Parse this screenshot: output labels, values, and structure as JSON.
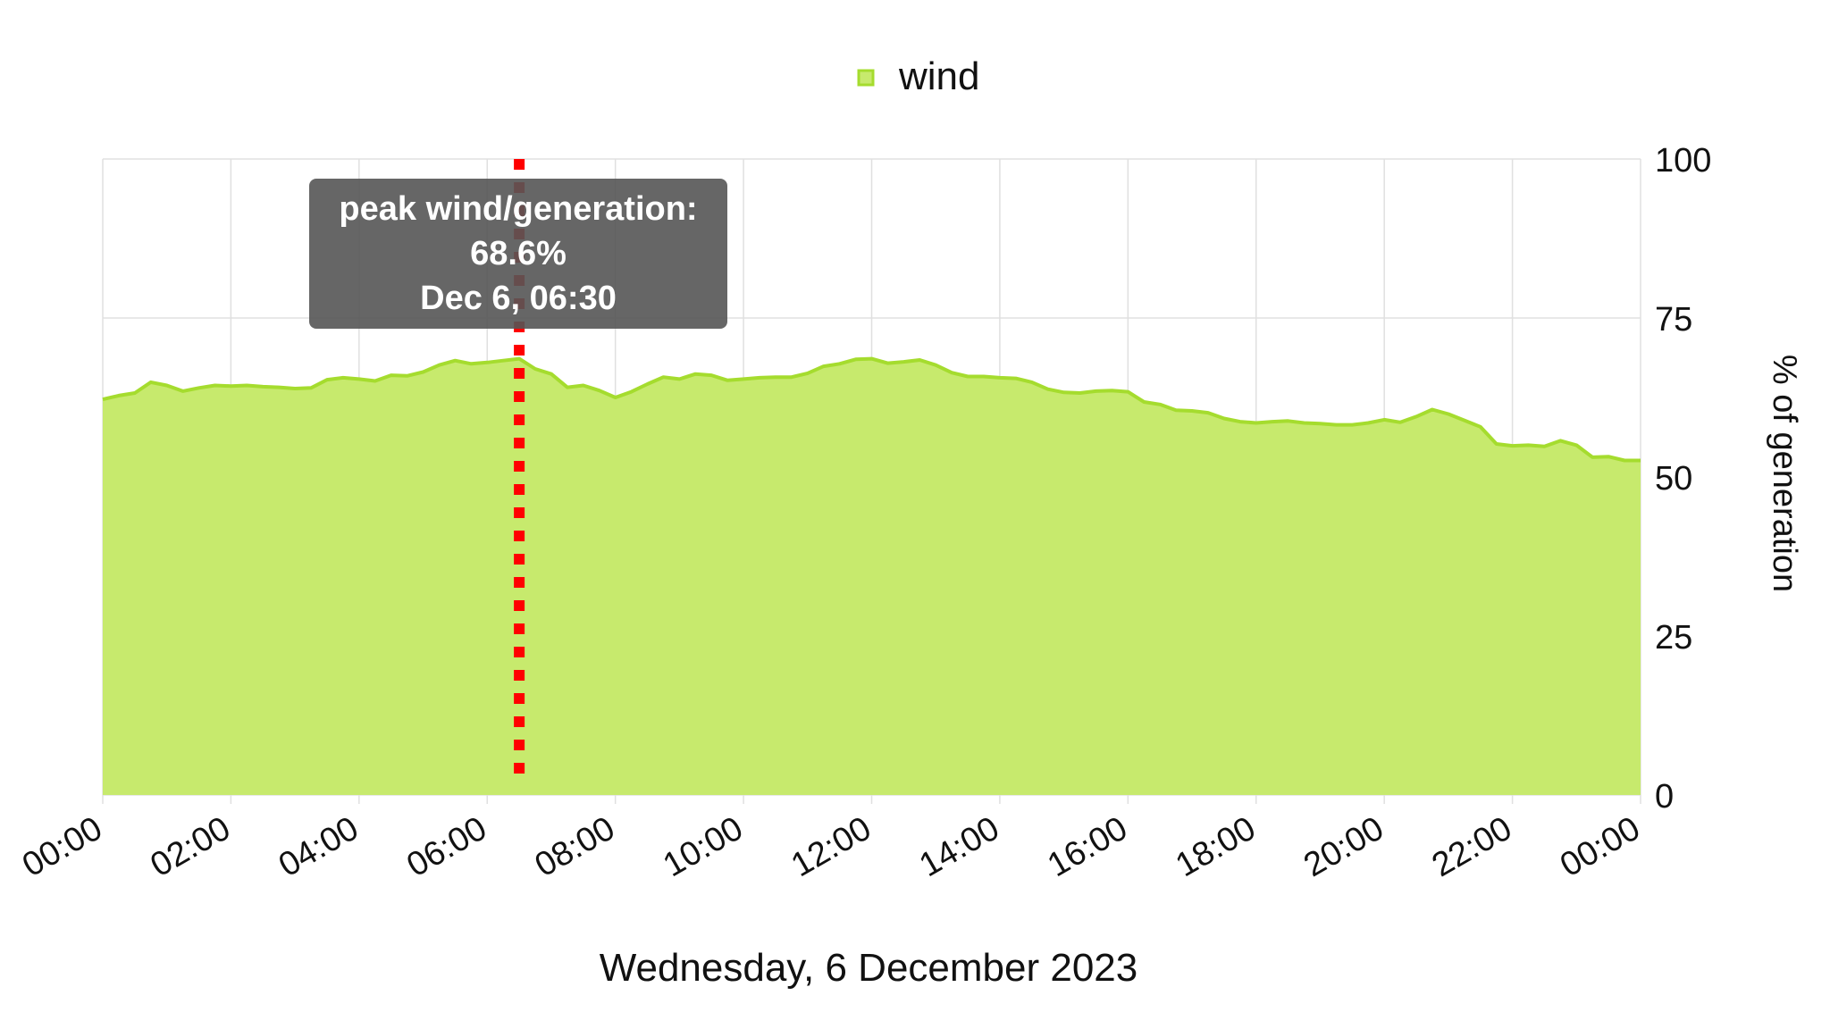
{
  "legend": {
    "label": "wind",
    "color": "#c7ea6d"
  },
  "tooltip": {
    "line1": "peak wind/generation:",
    "line2": "68.6%",
    "line3": "Dec 6, 06:30"
  },
  "colors": {
    "area_fill": "#c7ea6d",
    "area_line": "#a5dc2e",
    "peak_marker": "#ff0000",
    "grid": "#e0e0e0"
  },
  "chart_data": {
    "type": "area",
    "title": "",
    "xlabel": "Wednesday, 6 December 2023",
    "ylabel": "% of generation",
    "ylim": [
      0,
      100
    ],
    "y_ticks": [
      0,
      25,
      50,
      75,
      100
    ],
    "x_tick_labels": [
      "00:00",
      "02:00",
      "04:00",
      "06:00",
      "08:00",
      "10:00",
      "12:00",
      "14:00",
      "16:00",
      "18:00",
      "20:00",
      "22:00",
      "00:00"
    ],
    "x_range_hours": [
      0,
      24
    ],
    "grid": true,
    "legend_position": "top-center",
    "y_axis_side": "right",
    "peak": {
      "hour": 6.5,
      "value": 68.6
    },
    "series": [
      {
        "name": "wind",
        "x_hours": [
          0,
          0.25,
          0.5,
          0.75,
          1,
          1.25,
          1.5,
          1.75,
          2,
          2.25,
          2.5,
          2.75,
          3,
          3.25,
          3.5,
          3.75,
          4,
          4.25,
          4.5,
          4.75,
          5,
          5.25,
          5.5,
          5.75,
          6,
          6.25,
          6.5,
          6.75,
          7,
          7.25,
          7.5,
          7.75,
          8,
          8.25,
          8.5,
          8.75,
          9,
          9.25,
          9.5,
          9.75,
          10,
          10.25,
          10.5,
          10.75,
          11,
          11.25,
          11.5,
          11.75,
          12,
          12.25,
          12.5,
          12.75,
          13,
          13.25,
          13.5,
          13.75,
          14,
          14.25,
          14.5,
          14.75,
          15,
          15.25,
          15.5,
          15.75,
          16,
          16.25,
          16.5,
          16.75,
          17,
          17.25,
          17.5,
          17.75,
          18,
          18.25,
          18.5,
          18.75,
          19,
          19.25,
          19.5,
          19.75,
          20,
          20.25,
          20.5,
          20.75,
          21,
          21.25,
          21.5,
          21.75,
          22,
          22.25,
          22.5,
          22.75,
          23,
          23.25,
          23.5,
          23.75,
          24
        ],
        "values": [
          62.2,
          62.8,
          63.2,
          64.9,
          64.4,
          63.5,
          64.0,
          64.4,
          64.3,
          64.4,
          64.2,
          64.1,
          63.9,
          64.0,
          65.3,
          65.6,
          65.4,
          65.1,
          66.0,
          65.9,
          66.5,
          67.6,
          68.3,
          67.8,
          68.0,
          68.3,
          68.6,
          67.0,
          66.2,
          64.1,
          64.4,
          63.6,
          62.5,
          63.4,
          64.6,
          65.7,
          65.4,
          66.2,
          66.0,
          65.2,
          65.4,
          65.6,
          65.7,
          65.7,
          66.3,
          67.4,
          67.8,
          68.5,
          68.6,
          67.9,
          68.1,
          68.4,
          67.6,
          66.4,
          65.8,
          65.8,
          65.6,
          65.5,
          64.9,
          63.8,
          63.3,
          63.2,
          63.5,
          63.6,
          63.4,
          61.8,
          61.4,
          60.5,
          60.4,
          60.1,
          59.2,
          58.7,
          58.5,
          58.7,
          58.8,
          58.5,
          58.4,
          58.2,
          58.2,
          58.5,
          59.0,
          58.6,
          59.5,
          60.6,
          59.9,
          58.9,
          57.9,
          55.2,
          54.9,
          55.0,
          54.8,
          55.7,
          55.0,
          53.1,
          53.2,
          52.6,
          52.6
        ]
      }
    ]
  }
}
